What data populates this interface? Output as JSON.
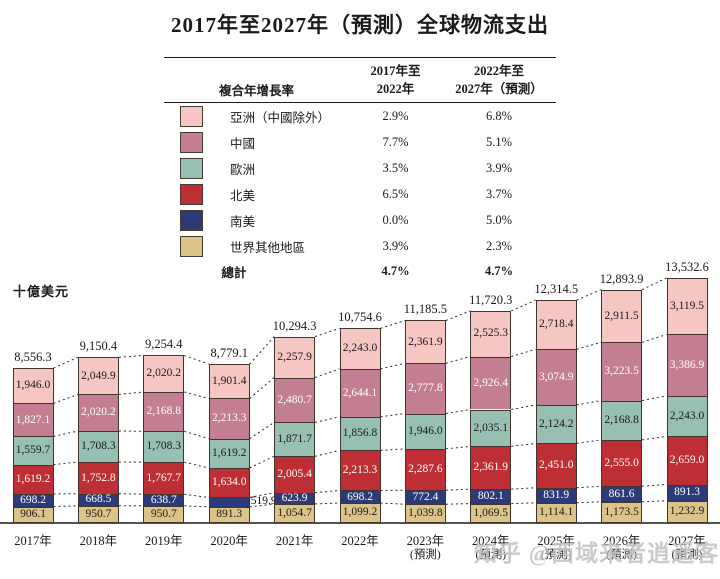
{
  "title": "2017年至2027年（預測）全球物流支出",
  "watermark": "知乎 @西域来者逍遥客",
  "legend": {
    "header_label": "複合年增長率",
    "col1_header": [
      "2017年至",
      "2022年"
    ],
    "col2_header": [
      "2022年至",
      "2027年（預測）"
    ],
    "rows": [
      {
        "label": "亞洲（中國除外）",
        "color": "#f6c6c3",
        "cagr_2017_2022": "2.9%",
        "cagr_2022_2027": "6.8%"
      },
      {
        "label": "中國",
        "color": "#c47e91",
        "cagr_2017_2022": "7.7%",
        "cagr_2022_2027": "5.1%"
      },
      {
        "label": "歐洲",
        "color": "#97c0b3",
        "cagr_2017_2022": "3.5%",
        "cagr_2022_2027": "3.9%"
      },
      {
        "label": "北美",
        "color": "#bd2f34",
        "cagr_2017_2022": "6.5%",
        "cagr_2022_2027": "3.7%"
      },
      {
        "label": "南美",
        "color": "#2d3a79",
        "cagr_2017_2022": "0.0%",
        "cagr_2022_2027": "5.0%"
      },
      {
        "label": "世界其他地區",
        "color": "#dcc489",
        "cagr_2017_2022": "3.9%",
        "cagr_2022_2027": "2.3%"
      }
    ],
    "total_row": {
      "label": "總計",
      "cagr_2017_2022": "4.7%",
      "cagr_2022_2027": "4.7%"
    }
  },
  "chart_data": {
    "type": "bar",
    "stacked": true,
    "title": "2017年至2027年（預測）全球物流支出",
    "ylabel": "十億美元",
    "ylim": [
      0,
      13532.6
    ],
    "grid": false,
    "legend_position": "top-table",
    "categories": [
      {
        "label": "2017年"
      },
      {
        "label": "2018年"
      },
      {
        "label": "2019年"
      },
      {
        "label": "2020年"
      },
      {
        "label": "2021年"
      },
      {
        "label": "2022年"
      },
      {
        "label": "2023年",
        "note": "(預測)"
      },
      {
        "label": "2024年",
        "note": "(預測)"
      },
      {
        "label": "2025年",
        "note": "(預測)"
      },
      {
        "label": "2026年",
        "note": "(預測)"
      },
      {
        "label": "2027年",
        "note": "(預測)"
      }
    ],
    "series": [
      {
        "id": "rest-of-world",
        "name": "世界其他地區",
        "color": "#dcc489",
        "text_color": "#1a1a1a",
        "values": [
          906.1,
          950.7,
          950.7,
          891.3,
          1054.7,
          1099.2,
          1039.8,
          1069.5,
          1114.1,
          1173.5,
          1232.9
        ]
      },
      {
        "id": "south-america",
        "name": "南美",
        "color": "#2d3a79",
        "text_color": "#ffffff",
        "values": [
          698.2,
          668.5,
          638.7,
          519.9,
          623.9,
          698.2,
          772.4,
          802.1,
          831.9,
          861.6,
          891.3
        ]
      },
      {
        "id": "north-america",
        "name": "北美",
        "color": "#bd2f34",
        "text_color": "#ffffff",
        "values": [
          1619.2,
          1752.8,
          1767.7,
          1634.0,
          2005.4,
          2213.3,
          2287.6,
          2361.9,
          2451.0,
          2555.0,
          2659.0
        ]
      },
      {
        "id": "europe",
        "name": "歐洲",
        "color": "#97c0b3",
        "text_color": "#1a1a1a",
        "values": [
          1559.7,
          1708.3,
          1708.3,
          1619.2,
          1871.7,
          1856.8,
          1946.0,
          2035.1,
          2124.2,
          2168.8,
          2243.0
        ]
      },
      {
        "id": "china",
        "name": "中國",
        "color": "#c47e91",
        "text_color": "#ffffff",
        "values": [
          1827.1,
          2020.2,
          2168.8,
          2213.3,
          2480.7,
          2644.1,
          2777.8,
          2926.4,
          3074.9,
          3223.5,
          3386.9
        ]
      },
      {
        "id": "asia-ex-china",
        "name": "亞洲（中國除外）",
        "color": "#f6c6c3",
        "text_color": "#1a1a1a",
        "values": [
          1946.0,
          2049.9,
          2020.2,
          1901.4,
          2257.9,
          2243.0,
          2361.9,
          2525.3,
          2718.4,
          2911.5,
          3119.5
        ]
      }
    ],
    "totals": [
      8556.3,
      9150.4,
      9254.4,
      8779.1,
      10294.3,
      10754.6,
      11185.5,
      11720.3,
      12314.5,
      12893.9,
      13532.6
    ],
    "outside_labels": [
      {
        "cat_index": 3,
        "series_index": 1
      }
    ]
  }
}
